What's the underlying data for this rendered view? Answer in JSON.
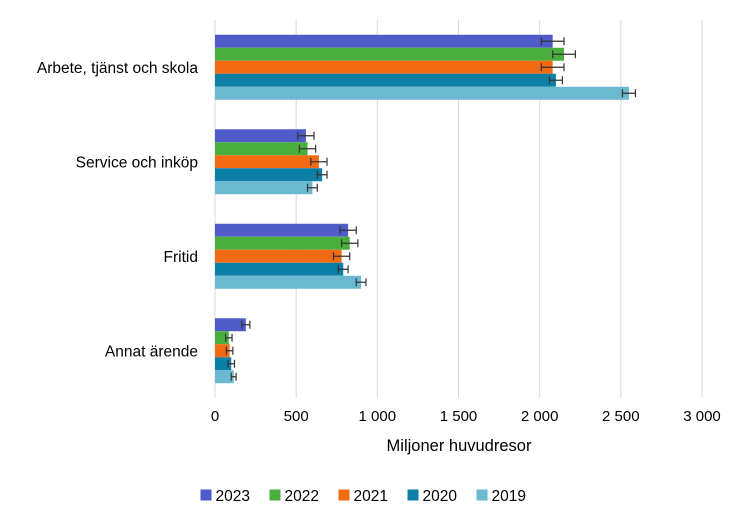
{
  "chart_data": {
    "type": "bar",
    "orientation": "horizontal",
    "title": "",
    "xlabel": "Miljoner huvudresor",
    "ylabel": "",
    "xlim": [
      0,
      3000
    ],
    "x_ticks": [
      0,
      500,
      1000,
      1500,
      2000,
      2500,
      3000
    ],
    "x_tick_labels": [
      "0",
      "500",
      "1 000",
      "1 500",
      "2 000",
      "2 500",
      "3 000"
    ],
    "grid": true,
    "legend_position": "bottom",
    "categories": [
      "Arbete, tjänst och skola",
      "Service och inköp",
      "Fritid",
      "Annat ärende"
    ],
    "series": [
      {
        "name": "2023",
        "color": "#4f5bc8",
        "values": [
          2080,
          560,
          820,
          190
        ],
        "errors": [
          70,
          50,
          50,
          25
        ]
      },
      {
        "name": "2022",
        "color": "#4aae3d",
        "values": [
          2150,
          570,
          830,
          85
        ],
        "errors": [
          70,
          50,
          50,
          20
        ]
      },
      {
        "name": "2021",
        "color": "#f26a12",
        "values": [
          2080,
          640,
          780,
          90
        ],
        "errors": [
          70,
          50,
          50,
          20
        ]
      },
      {
        "name": "2020",
        "color": "#0c7fa7",
        "values": [
          2100,
          660,
          790,
          100
        ],
        "errors": [
          40,
          30,
          30,
          20
        ]
      },
      {
        "name": "2019",
        "color": "#6ab9d1",
        "values": [
          2550,
          600,
          900,
          115
        ],
        "errors": [
          40,
          30,
          30,
          15
        ]
      }
    ]
  }
}
